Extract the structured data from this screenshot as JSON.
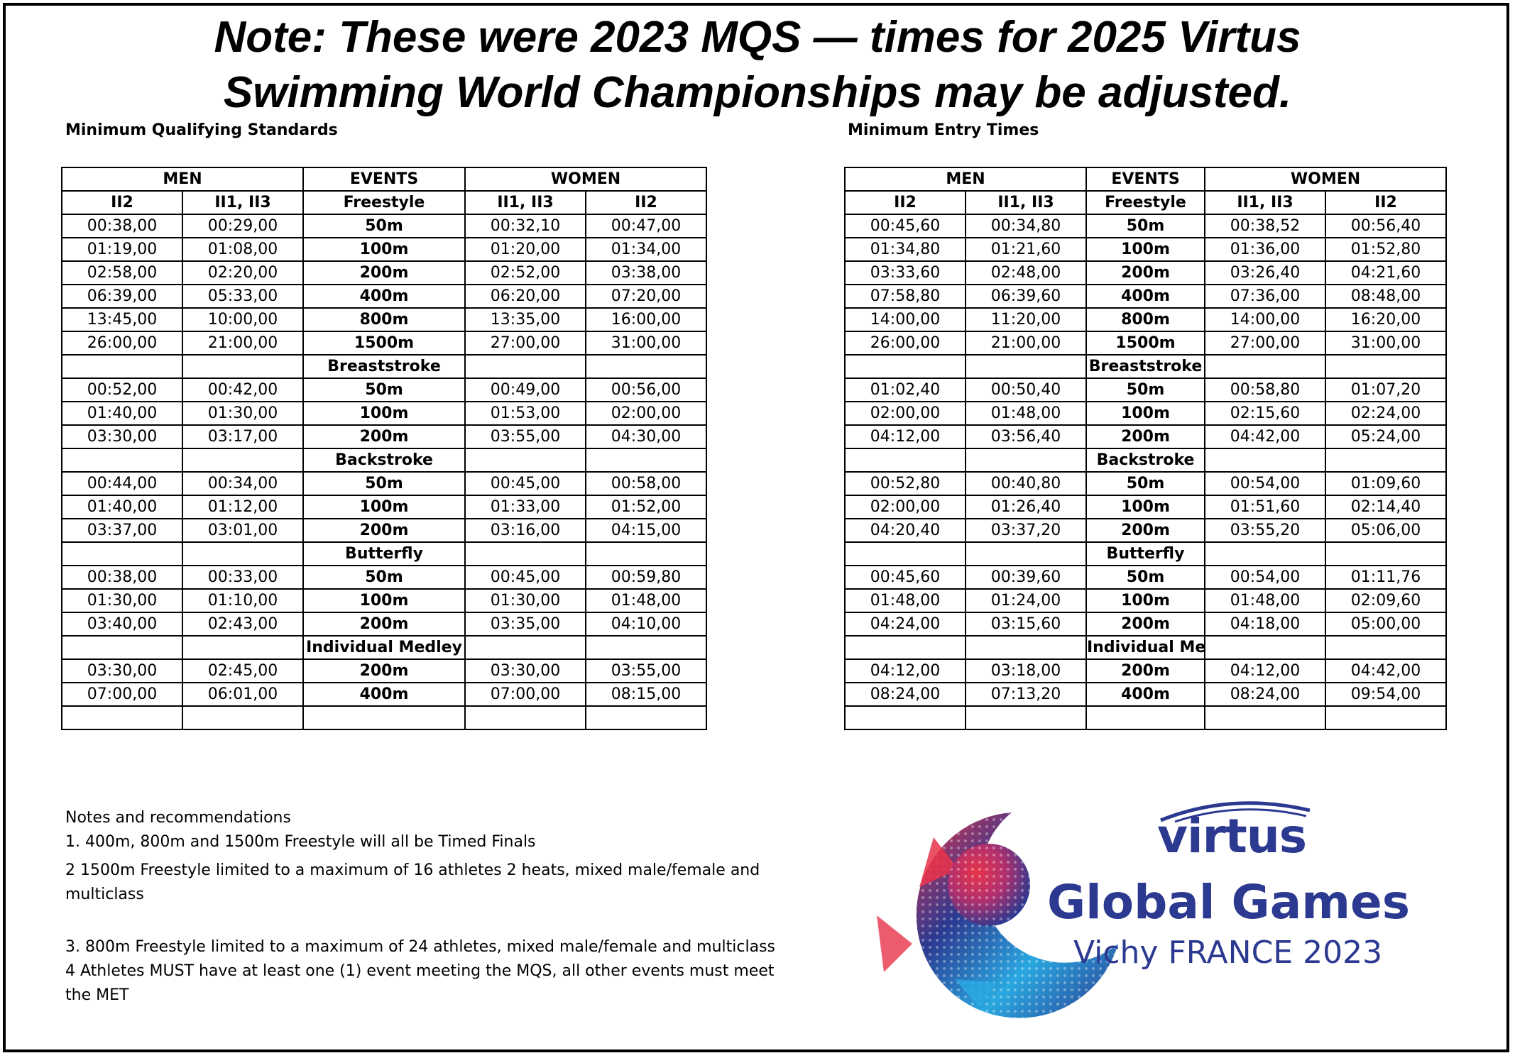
{
  "headline": {
    "line1": "Note: These were 2023 MQS — times for 2025 Virtus",
    "line2": "Swimming World Championships may be adjusted."
  },
  "mqs": {
    "label": "Minimum Qualifying Standards",
    "header": {
      "men": "MEN",
      "events": "EVENTS",
      "women": "WOMEN"
    },
    "subheader": [
      "II2",
      "II1, II3",
      "Freestyle",
      "II1, II3",
      "II2"
    ],
    "rows": [
      [
        "00:38,00",
        "00:29,00",
        "50m",
        "00:32,10",
        "00:47,00"
      ],
      [
        "01:19,00",
        "01:08,00",
        "100m",
        "01:20,00",
        "01:34,00"
      ],
      [
        "02:58,00",
        "02:20,00",
        "200m",
        "02:52,00",
        "03:38,00"
      ],
      [
        "06:39,00",
        "05:33,00",
        "400m",
        "06:20,00",
        "07:20,00"
      ],
      [
        "13:45,00",
        "10:00,00",
        "800m",
        "13:35,00",
        "16:00,00"
      ],
      [
        "26:00,00",
        "21:00,00",
        "1500m",
        "27:00,00",
        "31:00,00"
      ],
      [
        "",
        "",
        "Breaststroke",
        "",
        ""
      ],
      [
        "00:52,00",
        "00:42,00",
        "50m",
        "00:49,00",
        "00:56,00"
      ],
      [
        "01:40,00",
        "01:30,00",
        "100m",
        "01:53,00",
        "02:00,00"
      ],
      [
        "03:30,00",
        "03:17,00",
        "200m",
        "03:55,00",
        "04:30,00"
      ],
      [
        "",
        "",
        "Backstroke",
        "",
        ""
      ],
      [
        "00:44,00",
        "00:34,00",
        "50m",
        "00:45,00",
        "00:58,00"
      ],
      [
        "01:40,00",
        "01:12,00",
        "100m",
        "01:33,00",
        "01:52,00"
      ],
      [
        "03:37,00",
        "03:01,00",
        "200m",
        "03:16,00",
        "04:15,00"
      ],
      [
        "",
        "",
        "Butterfly",
        "",
        ""
      ],
      [
        "00:38,00",
        "00:33,00",
        "50m",
        "00:45,00",
        "00:59,80"
      ],
      [
        "01:30,00",
        "01:10,00",
        "100m",
        "01:30,00",
        "01:48,00"
      ],
      [
        "03:40,00",
        "02:43,00",
        "200m",
        "03:35,00",
        "04:10,00"
      ],
      [
        "",
        "",
        "Individual Medley",
        "",
        ""
      ],
      [
        "03:30,00",
        "02:45,00",
        "200m",
        "03:30,00",
        "03:55,00"
      ],
      [
        "07:00,00",
        "06:01,00",
        "400m",
        "07:00,00",
        "08:15,00"
      ],
      [
        "",
        "",
        "",
        "",
        ""
      ]
    ]
  },
  "met": {
    "label": "Minimum Entry Times",
    "header": {
      "men": "MEN",
      "events": "EVENTS",
      "women": "WOMEN"
    },
    "subheader": [
      "II2",
      "II1, II3",
      "Freestyle",
      "II1, II3",
      "II2"
    ],
    "rows": [
      [
        "00:45,60",
        "00:34,80",
        "50m",
        "00:38,52",
        "00:56,40"
      ],
      [
        "01:34,80",
        "01:21,60",
        "100m",
        "01:36,00",
        "01:52,80"
      ],
      [
        "03:33,60",
        "02:48,00",
        "200m",
        "03:26,40",
        "04:21,60"
      ],
      [
        "07:58,80",
        "06:39,60",
        "400m",
        "07:36,00",
        "08:48,00"
      ],
      [
        "14:00,00",
        "11:20,00",
        "800m",
        "14:00,00",
        "16:20,00"
      ],
      [
        "26:00,00",
        "21:00,00",
        "1500m",
        "27:00,00",
        "31:00,00"
      ],
      [
        "",
        "",
        "Breaststroke",
        "",
        ""
      ],
      [
        "01:02,40",
        "00:50,40",
        "50m",
        "00:58,80",
        "01:07,20"
      ],
      [
        "02:00,00",
        "01:48,00",
        "100m",
        "02:15,60",
        "02:24,00"
      ],
      [
        "04:12,00",
        "03:56,40",
        "200m",
        "04:42,00",
        "05:24,00"
      ],
      [
        "",
        "",
        "Backstroke",
        "",
        ""
      ],
      [
        "00:52,80",
        "00:40,80",
        "50m",
        "00:54,00",
        "01:09,60"
      ],
      [
        "02:00,00",
        "01:26,40",
        "100m",
        "01:51,60",
        "02:14,40"
      ],
      [
        "04:20,40",
        "03:37,20",
        "200m",
        "03:55,20",
        "05:06,00"
      ],
      [
        "",
        "",
        "Butterfly",
        "",
        ""
      ],
      [
        "00:45,60",
        "00:39,60",
        "50m",
        "00:54,00",
        "01:11,76"
      ],
      [
        "01:48,00",
        "01:24,00",
        "100m",
        "01:48,00",
        "02:09,60"
      ],
      [
        "04:24,00",
        "03:15,60",
        "200m",
        "04:18,00",
        "05:00,00"
      ],
      [
        "",
        "",
        "Individual Medley",
        "",
        ""
      ],
      [
        "04:12,00",
        "03:18,00",
        "200m",
        "04:12,00",
        "04:42,00"
      ],
      [
        "08:24,00",
        "07:13,20",
        "400m",
        "08:24,00",
        "09:54,00"
      ],
      [
        "",
        "",
        "",
        "",
        ""
      ]
    ]
  },
  "notes": {
    "title": "Notes and recommendations",
    "items": [
      "1.  400m, 800m and 1500m Freestyle will all be Timed Finals",
      "2  1500m Freestyle limited to a maximum of 16 athletes 2 heats, mixed male/female and multiclass",
      "3.  800m Freestyle limited to a maximum of 24 athletes,  mixed male/female and multiclass",
      "4  Athletes MUST have at least one (1) event meeting the MQS, all other events must meet the MET"
    ]
  },
  "logo": {
    "brand": "virtus",
    "title": "Global Games",
    "subtitle": "Vichy FRANCE 2023",
    "colors": {
      "blue": "#2b3990",
      "red": "#e8334a",
      "purple": "#7b3f98",
      "light_blue": "#29a8e0"
    }
  }
}
